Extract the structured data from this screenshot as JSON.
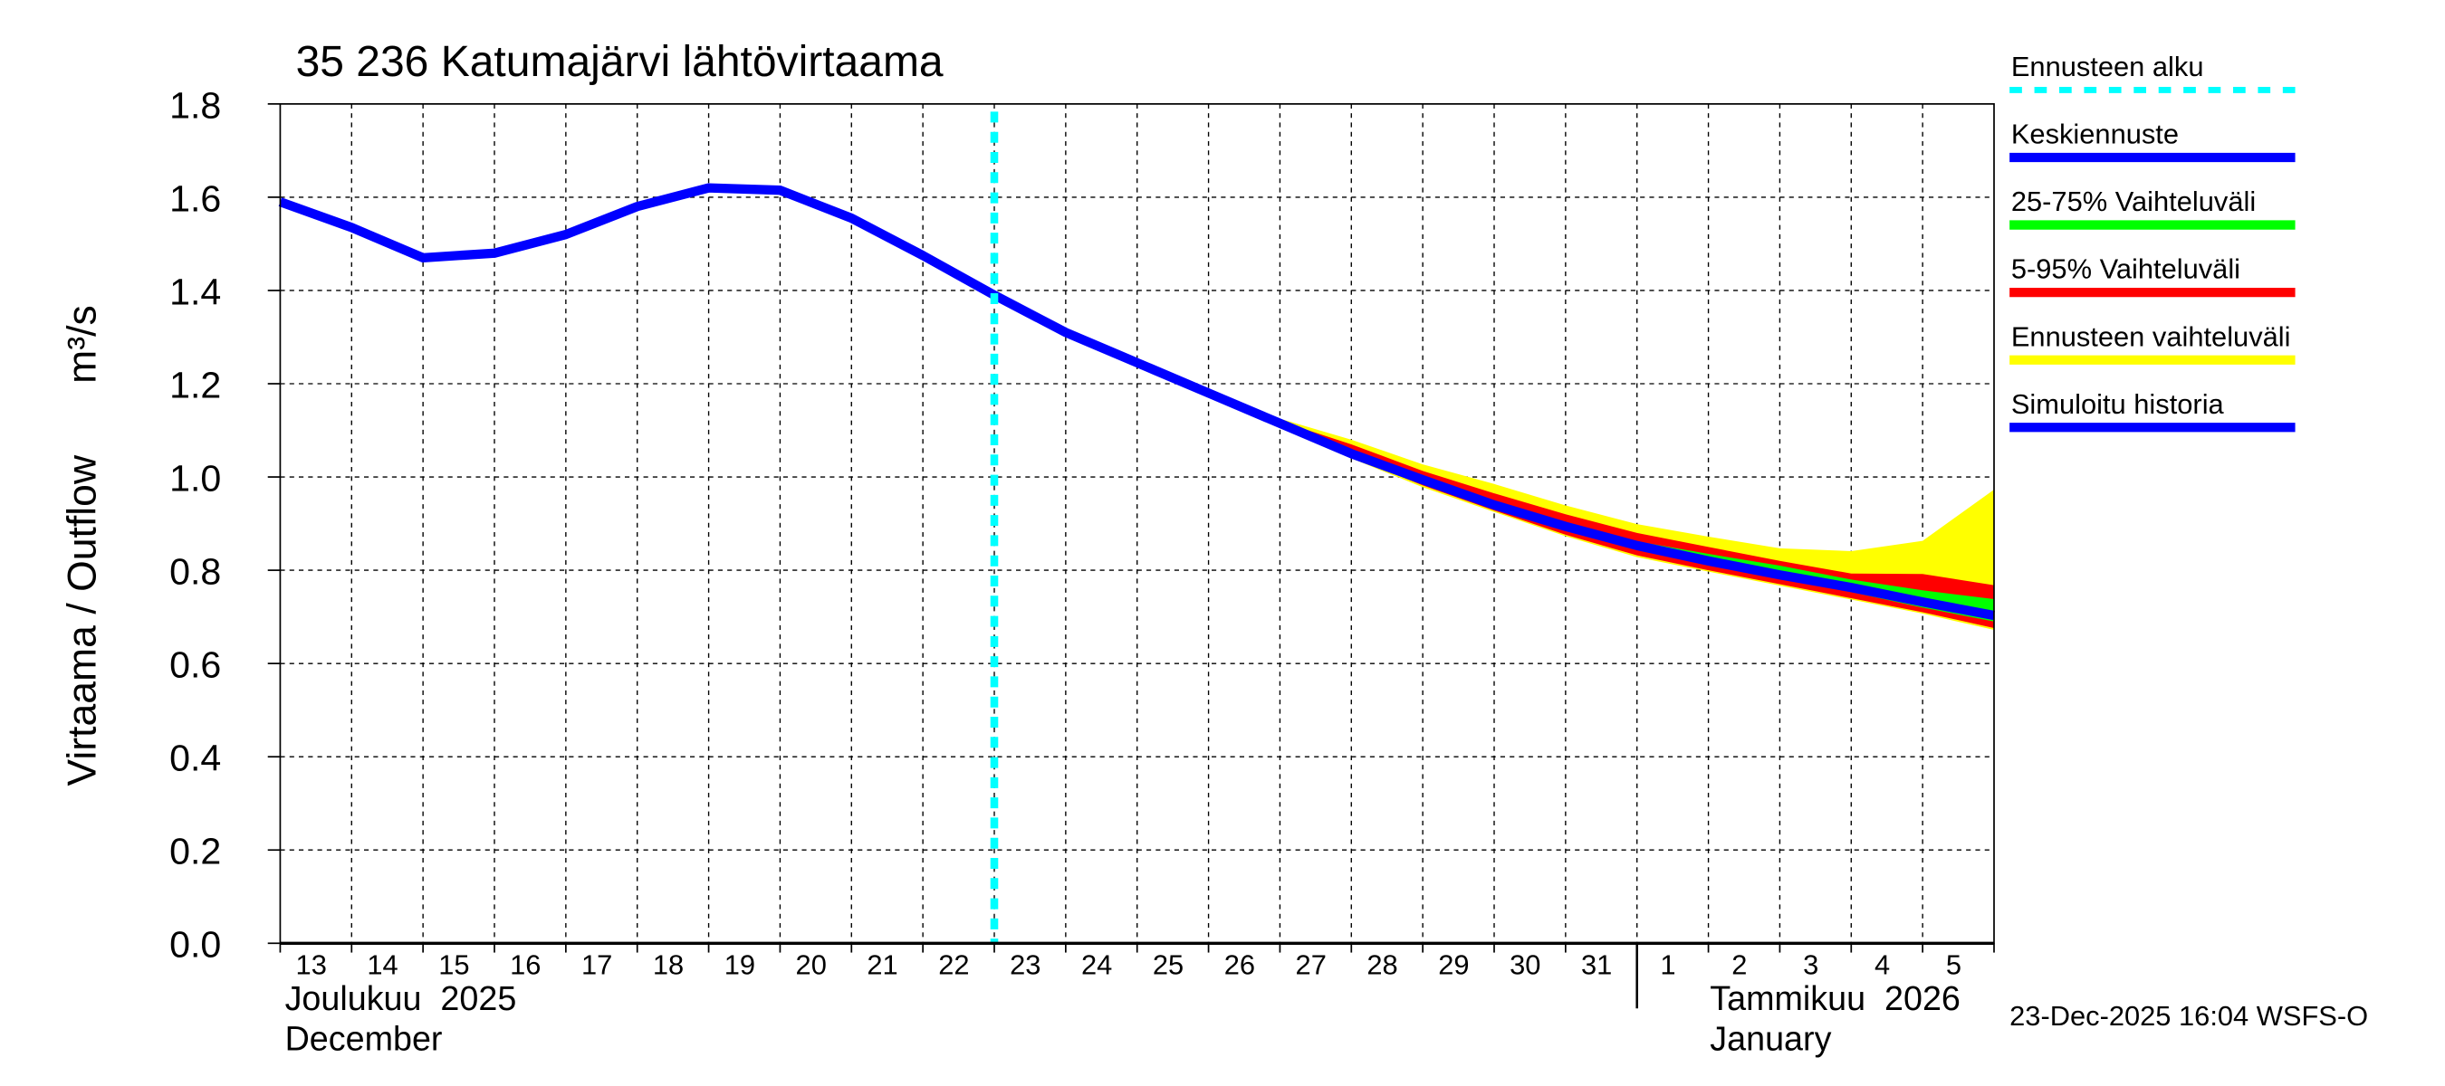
{
  "chart_data": {
    "type": "line",
    "title": "35 236 Katumajärvi lähtövirtaama",
    "ylabel": "Virtaama / Outflow",
    "yunit": "m³/s",
    "ylim": [
      0,
      1.8
    ],
    "yticks": [
      "0.0",
      "0.2",
      "0.4",
      "0.6",
      "0.8",
      "1.0",
      "1.2",
      "1.4",
      "1.6",
      "1.8"
    ],
    "xlim": [
      "2025-12-13",
      "2026-01-06"
    ],
    "xtick_labels": [
      "13",
      "14",
      "15",
      "16",
      "17",
      "18",
      "19",
      "20",
      "21",
      "22",
      "23",
      "24",
      "25",
      "26",
      "27",
      "28",
      "29",
      "30",
      "31",
      "1",
      "2",
      "3",
      "4",
      "5"
    ],
    "month_labels": [
      {
        "line1": "Joulukuu  2025",
        "line2": "December"
      },
      {
        "line1": "Tammikuu  2026",
        "line2": "January"
      }
    ],
    "grid": true,
    "legend_position": "right",
    "forecast_start": "2025-12-23",
    "colors": {
      "forecast_start": "#00ffff",
      "median": "#0000ff",
      "p25_75": "#00ff00",
      "p5_95": "#ff0000",
      "range": "#ffff00",
      "history": "#0000ff"
    },
    "legend": [
      {
        "key": "forecast_start",
        "label": "Ennusteen alku"
      },
      {
        "key": "median",
        "label": "Keskiennuste"
      },
      {
        "key": "p25_75",
        "label": "25-75% Vaihteluväli"
      },
      {
        "key": "p5_95",
        "label": "5-95% Vaihteluväli"
      },
      {
        "key": "range",
        "label": "Ennusteen vaihteluväli"
      },
      {
        "key": "history",
        "label": "Simuloitu historia"
      }
    ],
    "history": {
      "x": [
        "2025-12-13",
        "2025-12-14",
        "2025-12-15",
        "2025-12-16",
        "2025-12-17",
        "2025-12-18",
        "2025-12-19",
        "2025-12-20",
        "2025-12-21",
        "2025-12-22",
        "2025-12-23"
      ],
      "y": [
        1.59,
        1.535,
        1.47,
        1.48,
        1.52,
        1.58,
        1.62,
        1.615,
        1.555,
        1.475,
        1.39
      ]
    },
    "median": {
      "x": [
        "2025-12-23",
        "2025-12-24",
        "2025-12-25",
        "2025-12-26",
        "2025-12-27",
        "2025-12-28",
        "2025-12-29",
        "2025-12-30",
        "2025-12-31",
        "2026-01-01",
        "2026-01-02",
        "2026-01-03",
        "2026-01-04",
        "2026-01-05",
        "2026-01-06"
      ],
      "y": [
        1.39,
        1.31,
        1.245,
        1.18,
        1.115,
        1.05,
        0.994,
        0.94,
        0.894,
        0.853,
        0.82,
        0.79,
        0.763,
        0.732,
        0.703
      ]
    },
    "bands": {
      "x": [
        "2025-12-26",
        "2025-12-27",
        "2025-12-28",
        "2025-12-29",
        "2025-12-30",
        "2025-12-31",
        "2026-01-01",
        "2026-01-02",
        "2026-01-03",
        "2026-01-04",
        "2026-01-05",
        "2026-01-06"
      ],
      "range_upper": [
        1.18,
        1.125,
        1.08,
        1.027,
        0.985,
        0.939,
        0.899,
        0.872,
        0.847,
        0.841,
        0.863,
        0.973
      ],
      "range_lower": [
        1.175,
        1.105,
        1.04,
        0.978,
        0.925,
        0.873,
        0.828,
        0.797,
        0.767,
        0.737,
        0.707,
        0.672
      ],
      "p5_95_upper": [
        1.18,
        1.12,
        1.07,
        1.013,
        0.965,
        0.92,
        0.88,
        0.85,
        0.82,
        0.793,
        0.792,
        0.768
      ],
      "p5_95_lower": [
        1.178,
        1.108,
        1.044,
        0.982,
        0.928,
        0.876,
        0.832,
        0.8,
        0.77,
        0.74,
        0.71,
        0.676
      ],
      "p25_75_upper": [
        1.18,
        1.115,
        1.052,
        0.998,
        0.945,
        0.9,
        0.862,
        0.835,
        0.81,
        0.78,
        0.757,
        0.738
      ],
      "p25_75_lower": [
        1.18,
        1.112,
        1.048,
        0.99,
        0.936,
        0.888,
        0.846,
        0.812,
        0.782,
        0.753,
        0.72,
        0.69
      ]
    }
  },
  "footer": "23-Dec-2025 16:04 WSFS-O"
}
